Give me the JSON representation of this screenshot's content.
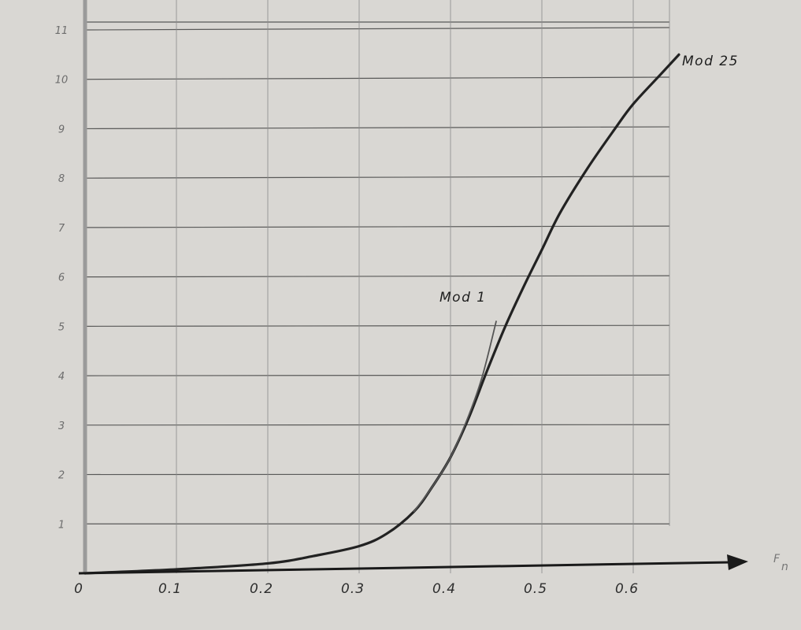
{
  "chart_data": {
    "type": "line",
    "title": "",
    "xlabel": "F_n",
    "ylabel": "",
    "xlim": [
      0,
      0.7
    ],
    "ylim": [
      0,
      11
    ],
    "grid": true,
    "x_ticks": [
      0,
      0.1,
      0.2,
      0.3,
      0.4,
      0.5,
      0.6
    ],
    "x_tick_labels": [
      "0",
      "0.1",
      "0.2",
      "0.3",
      "0.4",
      "0.5",
      "0.6"
    ],
    "y_ticks": [
      1,
      2,
      3,
      4,
      5,
      6,
      7,
      8,
      9,
      10,
      11
    ],
    "y_tick_labels": [
      "1",
      "2",
      "3",
      "4",
      "5",
      "6",
      "7",
      "8",
      "9",
      "10",
      "11"
    ],
    "series": [
      {
        "name": "Mod 25",
        "x": [
          0,
          0.1,
          0.2,
          0.25,
          0.3,
          0.33,
          0.36,
          0.38,
          0.4,
          0.42,
          0.44,
          0.46,
          0.48,
          0.5,
          0.52,
          0.55,
          0.58,
          0.6,
          0.63,
          0.65
        ],
        "y": [
          0,
          0.08,
          0.2,
          0.35,
          0.55,
          0.8,
          1.25,
          1.75,
          2.35,
          3.15,
          4.1,
          5.0,
          5.8,
          6.55,
          7.3,
          8.2,
          9.0,
          9.5,
          10.1,
          10.5
        ]
      },
      {
        "name": "Mod 1",
        "x": [
          0.36,
          0.38,
          0.4,
          0.42,
          0.435,
          0.45
        ],
        "y": [
          1.25,
          1.75,
          2.35,
          3.2,
          4.0,
          5.1
        ]
      }
    ],
    "color": "#222222"
  }
}
